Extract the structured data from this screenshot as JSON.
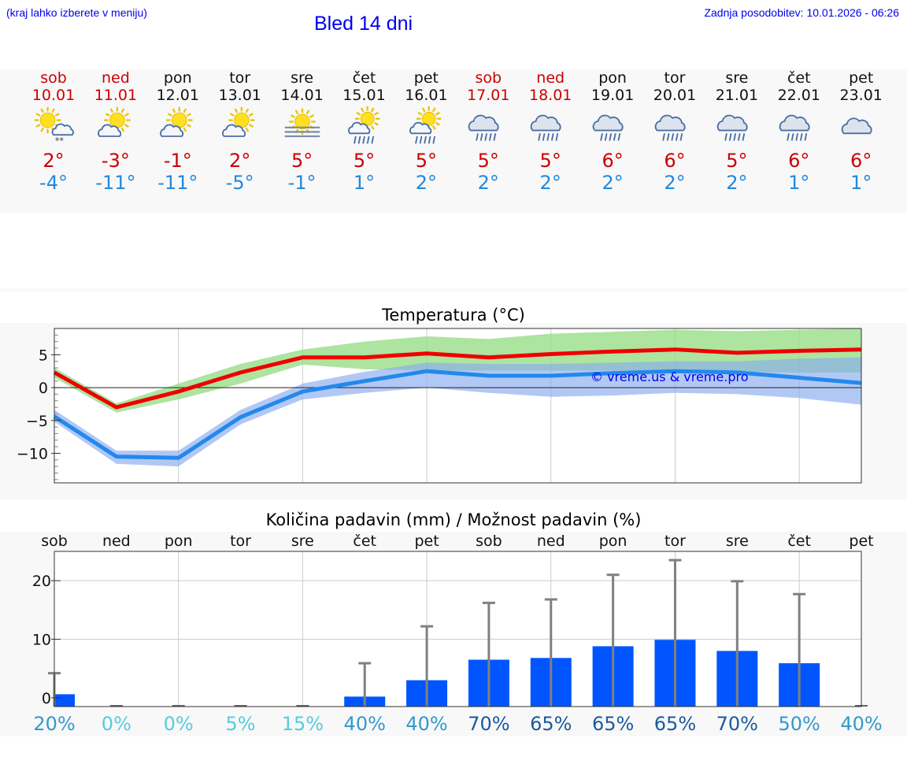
{
  "header": {
    "hint": "(kraj lahko izberete v meniju)",
    "title": "Bled 14 dni",
    "updated": "Zadnja posodobitev: 10.01.2026 - 06:26"
  },
  "days": [
    {
      "name": "sob",
      "date": "10.01",
      "weekend": true,
      "icon": "sun-cloud-snow-icon",
      "tmax": "2°",
      "tmin": "-4°"
    },
    {
      "name": "ned",
      "date": "11.01",
      "weekend": true,
      "icon": "sun-cloud-icon",
      "tmax": "-3°",
      "tmin": "-11°"
    },
    {
      "name": "pon",
      "date": "12.01",
      "weekend": false,
      "icon": "sun-cloud-icon",
      "tmax": "-1°",
      "tmin": "-11°"
    },
    {
      "name": "tor",
      "date": "13.01",
      "weekend": false,
      "icon": "sun-cloud-icon",
      "tmax": "2°",
      "tmin": "-5°"
    },
    {
      "name": "sre",
      "date": "14.01",
      "weekend": false,
      "icon": "sun-fog-icon",
      "tmax": "5°",
      "tmin": "-1°"
    },
    {
      "name": "čet",
      "date": "15.01",
      "weekend": false,
      "icon": "sun-cloud-rain-icon",
      "tmax": "5°",
      "tmin": "1°"
    },
    {
      "name": "pet",
      "date": "16.01",
      "weekend": false,
      "icon": "sun-cloud-rain-icon",
      "tmax": "5°",
      "tmin": "2°"
    },
    {
      "name": "sob",
      "date": "17.01",
      "weekend": true,
      "icon": "cloud-rain-icon",
      "tmax": "5°",
      "tmin": "2°"
    },
    {
      "name": "ned",
      "date": "18.01",
      "weekend": true,
      "icon": "cloud-rain-icon",
      "tmax": "5°",
      "tmin": "2°"
    },
    {
      "name": "pon",
      "date": "19.01",
      "weekend": false,
      "icon": "cloud-rain-icon",
      "tmax": "6°",
      "tmin": "2°"
    },
    {
      "name": "tor",
      "date": "20.01",
      "weekend": false,
      "icon": "cloud-rain-icon",
      "tmax": "6°",
      "tmin": "2°"
    },
    {
      "name": "sre",
      "date": "21.01",
      "weekend": false,
      "icon": "cloud-rain-icon",
      "tmax": "5°",
      "tmin": "2°"
    },
    {
      "name": "čet",
      "date": "22.01",
      "weekend": false,
      "icon": "cloud-rain-icon",
      "tmax": "6°",
      "tmin": "1°"
    },
    {
      "name": "pet",
      "date": "23.01",
      "weekend": false,
      "icon": "cloud-icon",
      "tmax": "6°",
      "tmin": "1°"
    }
  ],
  "chart_data": [
    {
      "type": "line",
      "title": "Temperatura (°C)",
      "watermark": "© vreme.us & vreme.pro",
      "x": [
        0,
        1,
        2,
        3,
        4,
        5,
        6,
        7,
        8,
        9,
        10,
        11,
        12,
        13
      ],
      "ylim": [
        -14.5,
        9
      ],
      "yticks": [
        5,
        0,
        -5,
        -10
      ],
      "ytick_labels": [
        "5",
        "0",
        "−10"
      ],
      "ytick_labels_all": [
        "5",
        "0",
        "−5",
        "−10"
      ],
      "series": [
        {
          "name": "max",
          "color": "#ee0000",
          "values": [
            2.3,
            -3.0,
            -0.6,
            2.3,
            4.6,
            4.6,
            5.2,
            4.6,
            5.1,
            5.5,
            5.8,
            5.3,
            5.6,
            5.8
          ],
          "band_low": [
            1.5,
            -3.8,
            -1.8,
            0.6,
            3.5,
            2.8,
            2.6,
            2.6,
            2.6,
            2.6,
            2.5,
            2.4,
            2.3,
            2.3
          ],
          "band_high": [
            3.0,
            -2.4,
            0.6,
            3.6,
            5.8,
            7.0,
            7.8,
            7.4,
            8.2,
            8.5,
            8.8,
            8.6,
            8.8,
            9.0
          ],
          "band_color": "#99dd88"
        },
        {
          "name": "min",
          "color": "#2288ee",
          "values": [
            -4.4,
            -10.5,
            -10.7,
            -4.5,
            -0.6,
            1.0,
            2.5,
            1.8,
            1.8,
            2.2,
            2.5,
            2.3,
            1.5,
            0.7
          ],
          "band_low": [
            -5.2,
            -11.6,
            -12.0,
            -5.6,
            -1.8,
            -0.8,
            0.0,
            -0.8,
            -1.4,
            -1.2,
            -0.8,
            -1.0,
            -1.6,
            -2.6
          ],
          "band_high": [
            -3.4,
            -9.6,
            -9.6,
            -3.4,
            0.6,
            2.4,
            3.8,
            3.6,
            3.6,
            3.8,
            4.0,
            4.0,
            4.4,
            4.6
          ],
          "band_color": "#88aaee"
        }
      ]
    },
    {
      "type": "bar",
      "title": "Količina padavin (mm) / Možnost padavin (%)",
      "categories": [
        "sob",
        "ned",
        "pon",
        "tor",
        "sre",
        "čet",
        "pet",
        "sob",
        "ned",
        "pon",
        "tor",
        "sre",
        "čet",
        "pet"
      ],
      "ylim": [
        -1.5,
        25
      ],
      "yticks": [
        0,
        10,
        20
      ],
      "ytick_labels": [
        "0",
        "10",
        "20"
      ],
      "values": [
        0.6,
        0,
        0,
        0,
        0,
        0.2,
        3.0,
        6.5,
        6.8,
        8.8,
        9.9,
        8.0,
        5.9,
        0
      ],
      "error_high": [
        4.2,
        0,
        0,
        0,
        0.1,
        5.9,
        12.2,
        16.2,
        16.8,
        21.0,
        23.5,
        19.9,
        17.7,
        0
      ],
      "probability": [
        "20%",
        "0%",
        "0%",
        "5%",
        "15%",
        "40%",
        "40%",
        "70%",
        "65%",
        "65%",
        "65%",
        "70%",
        "50%",
        "40%"
      ],
      "bar_color": "#0055ff",
      "error_color": "#808080"
    }
  ],
  "colors": {
    "title_blue": "#0000ee",
    "weekend_red": "#cc0000",
    "tmin_blue": "#2288dd"
  }
}
